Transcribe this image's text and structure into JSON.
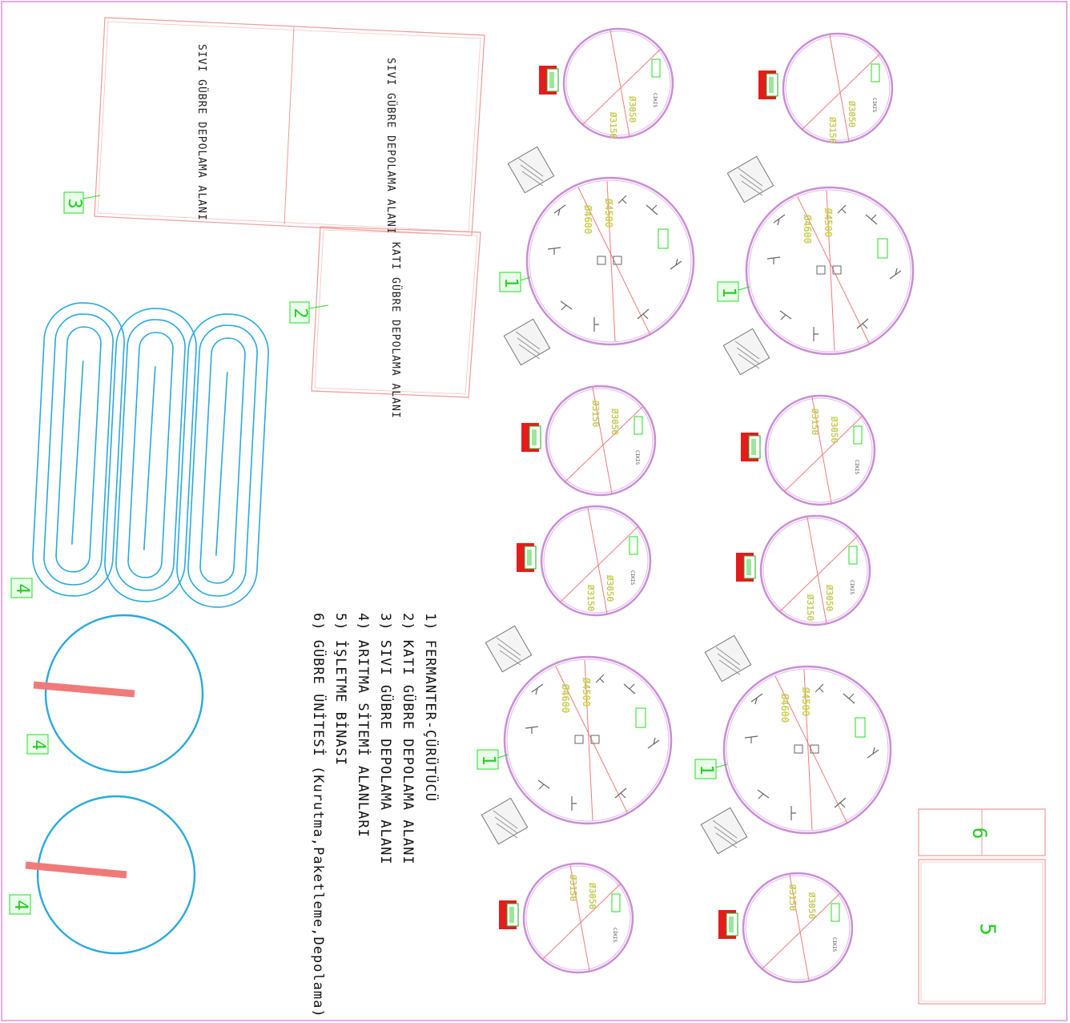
{
  "colors": {
    "frame": "#e8a8e8",
    "storage_outline": "#ef9a9a",
    "tank_ring": "#c98ed6",
    "tank_ring_inner": "#e3b6e8",
    "dimension_line": "#ee7b7b",
    "dimension_text": "#e8f000",
    "label_green": "#22dd22",
    "treatment_blue": "#29a9dd",
    "treatment_bar": "#f07a7a",
    "equipment": "#666666",
    "pump_red": "#e41c1c"
  },
  "areas": {
    "liquid_storage_a": "SIVI GÜBRE DEPOLAMA ALANI",
    "liquid_storage_b": "SIVI GÜBRE DEPOLAMA ALANI",
    "solid_storage": "KATI GÜBRE DEPOLAMA ALANI"
  },
  "legend": [
    "1) FERMANTER-ÇÜRÜTÜCÜ",
    "2) KATI GÜBRE DEPOLAMA ALANI",
    "3) SIVI GÜBRE DEPOLAMA ALANI",
    "4) ARITMA SİTEMİ ALANLARI",
    "5) İŞLETME BİNASI",
    "6) GÜBRE ÜNİTESİ (Kurutma,Paketleme,Depolama)"
  ],
  "tags": {
    "t1": "1",
    "t2": "2",
    "t3": "3",
    "t4": "4",
    "t5": "5",
    "t6": "6"
  },
  "dims": {
    "small_a": "Ø3150",
    "small_b": "Ø3050",
    "large_a": "Ø4500",
    "large_b": "Ø4600"
  }
}
